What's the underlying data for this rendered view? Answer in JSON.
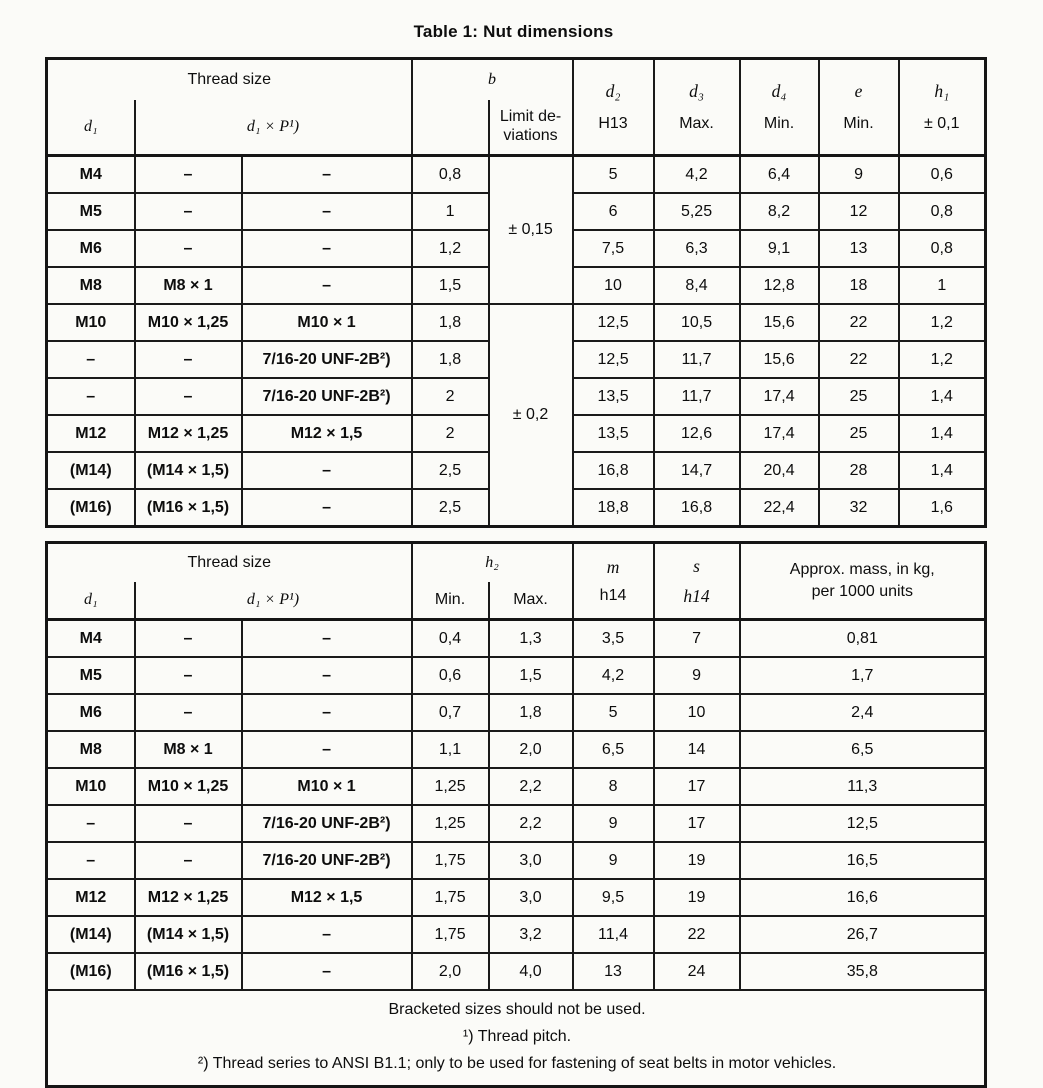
{
  "page": {
    "title": "Table 1: Nut dimensions"
  },
  "t1": {
    "h": {
      "thread_size": "Thread size",
      "d1": "d₁",
      "d1p": "d₁ × P¹)",
      "b": "b",
      "limit1": "Limit de-",
      "limit2": "viations",
      "d2": "d₂",
      "d2s": "H13",
      "d3": "d₃",
      "d3s": "Max.",
      "d4": "d₄",
      "d4s": "Min.",
      "e": "e",
      "es": "Min.",
      "h1": "h₁",
      "h1s": "± 0,1"
    },
    "dev": [
      {
        "label": "± 0,15"
      },
      {
        "label": "± 0,2"
      }
    ],
    "rows": [
      {
        "d1": "M4",
        "p1": "–",
        "p2": "–",
        "b": "0,8",
        "d2": "5",
        "d3": "4,2",
        "d4": "6,4",
        "e": "9",
        "h1": "0,6"
      },
      {
        "d1": "M5",
        "p1": "–",
        "p2": "–",
        "b": "1",
        "d2": "6",
        "d3": "5,25",
        "d4": "8,2",
        "e": "12",
        "h1": "0,8"
      },
      {
        "d1": "M6",
        "p1": "–",
        "p2": "–",
        "b": "1,2",
        "d2": "7,5",
        "d3": "6,3",
        "d4": "9,1",
        "e": "13",
        "h1": "0,8"
      },
      {
        "d1": "M8",
        "p1": "M8 × 1",
        "p2": "–",
        "b": "1,5",
        "d2": "10",
        "d3": "8,4",
        "d4": "12,8",
        "e": "18",
        "h1": "1"
      },
      {
        "d1": "M10",
        "p1": "M10 × 1,25",
        "p2": "M10 × 1",
        "b": "1,8",
        "d2": "12,5",
        "d3": "10,5",
        "d4": "15,6",
        "e": "22",
        "h1": "1,2"
      },
      {
        "d1": "–",
        "p1": "–",
        "p2": "7/16-20 UNF-2B²)",
        "b": "1,8",
        "d2": "12,5",
        "d3": "11,7",
        "d4": "15,6",
        "e": "22",
        "h1": "1,2"
      },
      {
        "d1": "–",
        "p1": "–",
        "p2": "7/16-20 UNF-2B²)",
        "b": "2",
        "d2": "13,5",
        "d3": "11,7",
        "d4": "17,4",
        "e": "25",
        "h1": "1,4"
      },
      {
        "d1": "M12",
        "p1": "M12 × 1,25",
        "p2": "M12 × 1,5",
        "b": "2",
        "d2": "13,5",
        "d3": "12,6",
        "d4": "17,4",
        "e": "25",
        "h1": "1,4"
      },
      {
        "d1": "(M14)",
        "p1": "(M14 × 1,5)",
        "p2": "–",
        "b": "2,5",
        "d2": "16,8",
        "d3": "14,7",
        "d4": "20,4",
        "e": "28",
        "h1": "1,4"
      },
      {
        "d1": "(M16)",
        "p1": "(M16 × 1,5)",
        "p2": "–",
        "b": "2,5",
        "d2": "18,8",
        "d3": "16,8",
        "d4": "22,4",
        "e": "32",
        "h1": "1,6"
      }
    ]
  },
  "t2": {
    "h": {
      "thread_size": "Thread size",
      "d1": "d₁",
      "d1p": "d₁ × P¹)",
      "h2": "h₂",
      "min": "Min.",
      "max": "Max.",
      "m": "m",
      "ms": "h14",
      "s": "s",
      "ss": "h14",
      "mass1": "Approx. mass, in kg,",
      "mass2": "per 1000 units"
    },
    "rows": [
      {
        "d1": "M4",
        "p1": "–",
        "p2": "–",
        "min": "0,4",
        "max": "1,3",
        "m": "3,5",
        "s": "7",
        "mass": "0,81"
      },
      {
        "d1": "M5",
        "p1": "–",
        "p2": "–",
        "min": "0,6",
        "max": "1,5",
        "m": "4,2",
        "s": "9",
        "mass": "1,7"
      },
      {
        "d1": "M6",
        "p1": "–",
        "p2": "–",
        "min": "0,7",
        "max": "1,8",
        "m": "5",
        "s": "10",
        "mass": "2,4"
      },
      {
        "d1": "M8",
        "p1": "M8 × 1",
        "p2": "–",
        "min": "1,1",
        "max": "2,0",
        "m": "6,5",
        "s": "14",
        "mass": "6,5"
      },
      {
        "d1": "M10",
        "p1": "M10 × 1,25",
        "p2": "M10 × 1",
        "min": "1,25",
        "max": "2,2",
        "m": "8",
        "s": "17",
        "mass": "11,3"
      },
      {
        "d1": "–",
        "p1": "–",
        "p2": "7/16-20 UNF-2B²)",
        "min": "1,25",
        "max": "2,2",
        "m": "9",
        "s": "17",
        "mass": "12,5"
      },
      {
        "d1": "–",
        "p1": "–",
        "p2": "7/16-20 UNF-2B²)",
        "min": "1,75",
        "max": "3,0",
        "m": "9",
        "s": "19",
        "mass": "16,5"
      },
      {
        "d1": "M12",
        "p1": "M12 × 1,25",
        "p2": "M12 × 1,5",
        "min": "1,75",
        "max": "3,0",
        "m": "9,5",
        "s": "19",
        "mass": "16,6"
      },
      {
        "d1": "(M14)",
        "p1": "(M14 × 1,5)",
        "p2": "–",
        "min": "1,75",
        "max": "3,2",
        "m": "11,4",
        "s": "22",
        "mass": "26,7"
      },
      {
        "d1": "(M16)",
        "p1": "(M16 × 1,5)",
        "p2": "–",
        "min": "2,0",
        "max": "4,0",
        "m": "13",
        "s": "24",
        "mass": "35,8"
      }
    ]
  },
  "notes": {
    "n0": "Bracketed sizes should not be used.",
    "n1": "¹) Thread pitch.",
    "n2": "²) Thread series to ANSI B1.1; only to be used for fastening of seat belts in motor vehicles."
  }
}
